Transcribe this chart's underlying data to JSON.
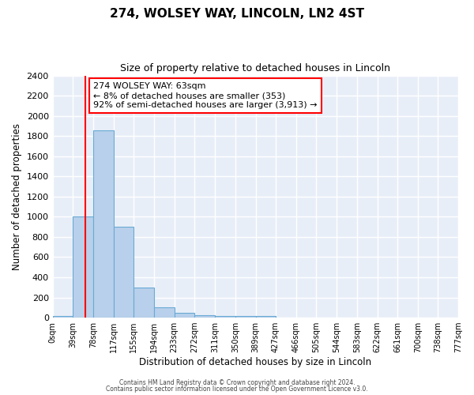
{
  "title": "274, WOLSEY WAY, LINCOLN, LN2 4ST",
  "subtitle": "Size of property relative to detached houses in Lincoln",
  "xlabel": "Distribution of detached houses by size in Lincoln",
  "ylabel": "Number of detached properties",
  "bar_color": "#b8d0eb",
  "bar_edge_color": "#6aaad4",
  "background_color": "#e8eef8",
  "grid_color": "#ffffff",
  "bin_edges": [
    0,
    39,
    78,
    117,
    155,
    194,
    233,
    272,
    311,
    350,
    389,
    427,
    466,
    505,
    544,
    583,
    622,
    661,
    700,
    738,
    777
  ],
  "bin_labels": [
    "0sqm",
    "39sqm",
    "78sqm",
    "117sqm",
    "155sqm",
    "194sqm",
    "233sqm",
    "272sqm",
    "311sqm",
    "350sqm",
    "389sqm",
    "427sqm",
    "466sqm",
    "505sqm",
    "544sqm",
    "583sqm",
    "622sqm",
    "661sqm",
    "700sqm",
    "738sqm",
    "777sqm"
  ],
  "bar_heights": [
    20,
    1000,
    1860,
    900,
    300,
    100,
    50,
    25,
    20,
    20,
    20,
    0,
    0,
    0,
    0,
    0,
    0,
    0,
    0,
    0
  ],
  "red_line_x": 63,
  "ylim": [
    0,
    2400
  ],
  "yticks": [
    0,
    200,
    400,
    600,
    800,
    1000,
    1200,
    1400,
    1600,
    1800,
    2000,
    2200,
    2400
  ],
  "annotation_line1": "274 WOLSEY WAY: 63sqm",
  "annotation_line2": "← 8% of detached houses are smaller (353)",
  "annotation_line3": "92% of semi-detached houses are larger (3,913) →",
  "footer1": "Contains HM Land Registry data © Crown copyright and database right 2024.",
  "footer2": "Contains public sector information licensed under the Open Government Licence v3.0."
}
